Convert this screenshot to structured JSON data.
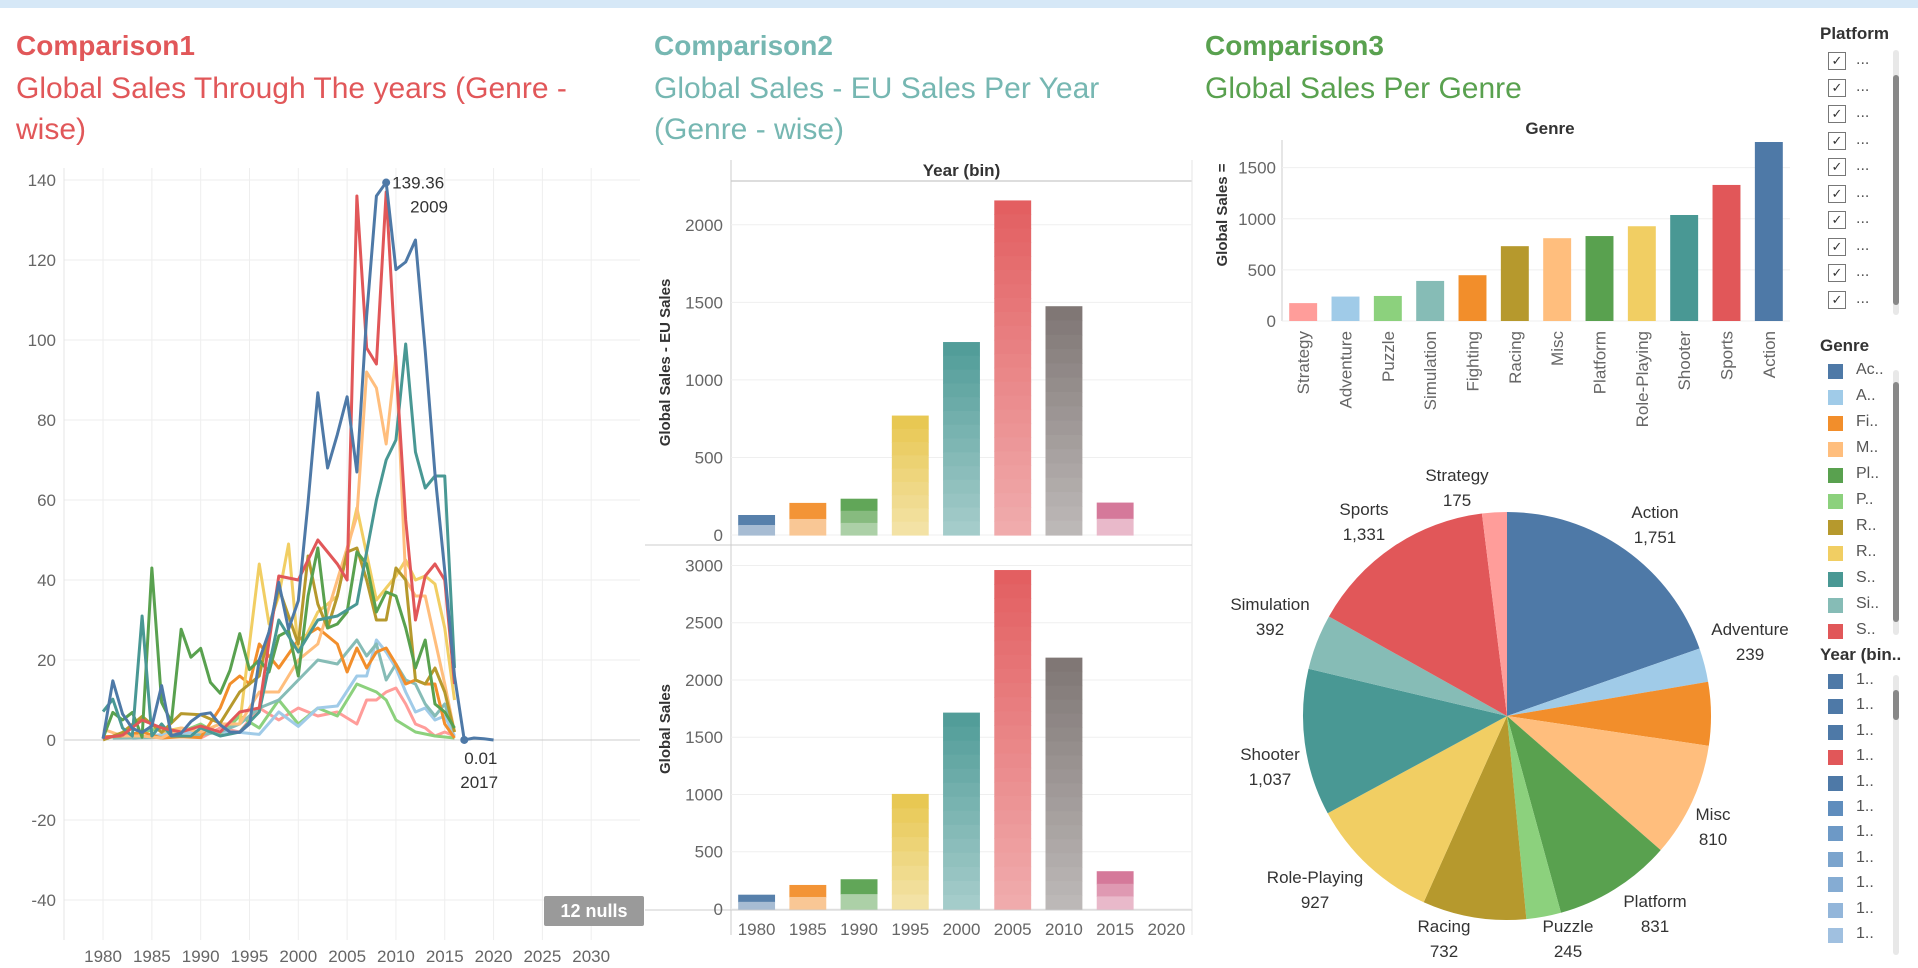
{
  "colors": {
    "Action": "#4e79a7",
    "Adventure": "#a0cbe8",
    "Fighting": "#f28e2b",
    "Misc": "#ffbe7d",
    "Platform": "#59a14f",
    "Puzzle": "#8cd17d",
    "Racing": "#b6992d",
    "Role-Playing": "#f1ce63",
    "Shooter": "#499894",
    "Simulation": "#86bcb6",
    "Sports": "#e15759",
    "Strategy": "#ff9d9a"
  },
  "comparison1": {
    "heading": "Comparison1",
    "subtitle_line1": "Global Sales Through The years (Genre -",
    "subtitle_line2": "wise)",
    "heading_color": "#e15759",
    "nulls_badge": "12 nulls",
    "annotation_max_value": "139.36",
    "annotation_max_year": "2009",
    "annotation_min_value": "0.01",
    "annotation_min_year": "2017"
  },
  "comparison2": {
    "heading": "Comparison2",
    "subtitle_line1": "Global Sales - EU Sales Per Year",
    "subtitle_line2": "(Genre - wise)",
    "heading_color": "#76b7b2",
    "top_header": "Year (bin)",
    "ylabel_top": "Global Sales - EU Sales",
    "ylabel_bottom": "Global Sales"
  },
  "comparison3": {
    "heading": "Comparison3",
    "subtitle_line1": "Global Sales Per Genre",
    "heading_color": "#59a14f",
    "bar_header": "Genre",
    "bar_ylabel": "Global Sales ="
  },
  "sidebar": {
    "platform_title": "Platform",
    "platform_items": [
      "...",
      "...",
      "...",
      "...",
      "...",
      "...",
      "...",
      "...",
      "...",
      "..."
    ],
    "genre_title": "Genre",
    "genre_items": [
      {
        "label": "Ac..",
        "color": "#4e79a7"
      },
      {
        "label": "A..",
        "color": "#a0cbe8"
      },
      {
        "label": "Fi..",
        "color": "#f28e2b"
      },
      {
        "label": "M..",
        "color": "#ffbe7d"
      },
      {
        "label": "Pl..",
        "color": "#59a14f"
      },
      {
        "label": "P..",
        "color": "#8cd17d"
      },
      {
        "label": "R..",
        "color": "#b6992d"
      },
      {
        "label": "R..",
        "color": "#f1ce63"
      },
      {
        "label": "S..",
        "color": "#499894"
      },
      {
        "label": "Si..",
        "color": "#86bcb6"
      },
      {
        "label": "S..",
        "color": "#e15759"
      }
    ],
    "year_title": "Year (bin..",
    "year_items": [
      {
        "label": "1..",
        "color": "#4e79a7"
      },
      {
        "label": "1..",
        "color": "#4e79a7"
      },
      {
        "label": "1..",
        "color": "#4e79a7"
      },
      {
        "label": "1..",
        "color": "#e15759"
      },
      {
        "label": "1..",
        "color": "#4e79a7"
      },
      {
        "label": "1..",
        "color": "#5f8dbd"
      },
      {
        "label": "1..",
        "color": "#6d99c6"
      },
      {
        "label": "1..",
        "color": "#7ba4cd"
      },
      {
        "label": "1..",
        "color": "#85acd3"
      },
      {
        "label": "1..",
        "color": "#93b6da"
      },
      {
        "label": "1..",
        "color": "#a0c0e0"
      }
    ]
  },
  "chart_data": [
    {
      "type": "line",
      "title": "Global Sales Through The years (Genre - wise)",
      "x_ticks": [
        1980,
        1985,
        1990,
        1995,
        2000,
        2005,
        2010,
        2015,
        2020,
        2025,
        2030
      ],
      "y_ticks": [
        -40,
        -20,
        0,
        20,
        40,
        60,
        80,
        100,
        120,
        140
      ],
      "xlim": [
        1976,
        2035
      ],
      "ylim": [
        -50,
        143
      ],
      "series": [
        {
          "name": "Action",
          "x": [
            1980,
            1981,
            1982,
            1983,
            1984,
            1985,
            1986,
            1987,
            1988,
            1989,
            1990,
            1991,
            1992,
            1993,
            1994,
            1995,
            1996,
            1997,
            1998,
            1999,
            2000,
            2001,
            2002,
            2003,
            2004,
            2005,
            2006,
            2007,
            2008,
            2009,
            2010,
            2011,
            2012,
            2013,
            2014,
            2015,
            2016,
            2017,
            2018,
            2019,
            2020
          ],
          "y": [
            0.3,
            14.8,
            6.5,
            2.9,
            1.9,
            3.5,
            13.6,
            1.1,
            1.7,
            4.6,
            6.4,
            6.8,
            3.8,
            2,
            1.9,
            4,
            20,
            27,
            39.4,
            27.7,
            34.8,
            59.4,
            86.8,
            68,
            76.4,
            85.8,
            67,
            106,
            136,
            139.4,
            117.6,
            119.5,
            125,
            97.3,
            66.5,
            42.3,
            16,
            0.01,
            0.5,
            0.3,
            0
          ]
        },
        {
          "name": "Sports",
          "x": [
            1980,
            1982,
            1984,
            1986,
            1988,
            1990,
            1992,
            1994,
            1996,
            1998,
            2000,
            2002,
            2004,
            2005,
            2006,
            2007,
            2008,
            2009,
            2010,
            2011,
            2012,
            2013,
            2014,
            2015,
            2016
          ],
          "y": [
            0.5,
            1.2,
            5,
            3,
            2,
            3.5,
            2,
            7,
            8,
            41,
            40,
            50,
            44,
            40,
            136,
            98,
            94,
            137,
            94,
            55,
            30,
            41,
            44,
            40,
            14
          ]
        },
        {
          "name": "Shooter",
          "x": [
            1980,
            1981,
            1982,
            1983,
            1984,
            1985,
            1986,
            1987,
            1988,
            1989,
            1990,
            1992,
            1994,
            1996,
            1998,
            2000,
            2002,
            2004,
            2006,
            2008,
            2009,
            2010,
            2011,
            2012,
            2013,
            2014,
            2015,
            2016
          ],
          "y": [
            7.1,
            10.2,
            3,
            1,
            31,
            1,
            4,
            1,
            1,
            1,
            3,
            1,
            2,
            7,
            30,
            22,
            30,
            31,
            34,
            60,
            70,
            75,
            99,
            72,
            63,
            66,
            66,
            18
          ]
        },
        {
          "name": "Platform",
          "x": [
            1980,
            1981,
            1982,
            1983,
            1984,
            1985,
            1986,
            1987,
            1988,
            1989,
            1990,
            1991,
            1992,
            1993,
            1994,
            1995,
            1996,
            1997,
            1998,
            1999,
            2000,
            2001,
            2002,
            2003,
            2004,
            2005,
            2006,
            2007,
            2008,
            2009,
            2010,
            2011,
            2012,
            2013,
            2014,
            2015,
            2016
          ],
          "y": [
            0.5,
            6.9,
            5,
            6.9,
            0.7,
            43,
            9.4,
            4.5,
            27.7,
            20.7,
            22.9,
            14.4,
            11.7,
            17.4,
            26.6,
            17.6,
            20,
            17,
            26,
            27.3,
            16,
            36,
            48,
            28,
            29,
            32,
            47,
            44,
            32,
            37,
            36,
            28,
            18,
            25,
            9,
            7,
            3
          ]
        },
        {
          "name": "Racing",
          "x": [
            1980,
            1982,
            1984,
            1986,
            1988,
            1990,
            1992,
            1994,
            1996,
            1998,
            2000,
            2001,
            2002,
            2003,
            2004,
            2005,
            2006,
            2007,
            2008,
            2009,
            2010,
            2011,
            2012,
            2013,
            2014,
            2015,
            2016
          ],
          "y": [
            0,
            1.9,
            5.9,
            1.9,
            6.6,
            6.3,
            4.2,
            12,
            16,
            38,
            24,
            46,
            34,
            28,
            36,
            47,
            48,
            40,
            30,
            30,
            43,
            40,
            15,
            14,
            18,
            12,
            2
          ]
        },
        {
          "name": "Misc",
          "x": [
            1980,
            1982,
            1984,
            1986,
            1988,
            1990,
            1992,
            1994,
            1996,
            1998,
            2000,
            2002,
            2004,
            2006,
            2007,
            2008,
            2009,
            2010,
            2011,
            2012,
            2013,
            2014,
            2015,
            2016
          ],
          "y": [
            2.7,
            1,
            1,
            0.5,
            3,
            2,
            4,
            4,
            12,
            12,
            20,
            24,
            40,
            56,
            92,
            88,
            74,
            96,
            40,
            36,
            36,
            25,
            14,
            2
          ]
        },
        {
          "name": "Role-Playing",
          "x": [
            1986,
            1988,
            1990,
            1992,
            1994,
            1996,
            1997,
            1998,
            1999,
            2000,
            2002,
            2004,
            2006,
            2008,
            2010,
            2011,
            2012,
            2013,
            2014,
            2015,
            2016
          ],
          "y": [
            2,
            3,
            2,
            4,
            4,
            44,
            29,
            36,
            49,
            22,
            32,
            36,
            58,
            35,
            41,
            45,
            40,
            41,
            39,
            28,
            10
          ]
        },
        {
          "name": "Fighting",
          "x": [
            1980,
            1982,
            1984,
            1986,
            1988,
            1990,
            1992,
            1993,
            1994,
            1995,
            1996,
            1998,
            2000,
            2002,
            2004,
            2005,
            2006,
            2007,
            2008,
            2009,
            2010,
            2011,
            2012,
            2013,
            2014,
            2015,
            2016
          ],
          "y": [
            0.8,
            1,
            2,
            0.5,
            0.8,
            0.6,
            8,
            14,
            16,
            14,
            24,
            18,
            25,
            28,
            24,
            17,
            23,
            18,
            22,
            23,
            19,
            14,
            15,
            14,
            14,
            4,
            0.5
          ]
        },
        {
          "name": "Simulation",
          "x": [
            1981,
            1985,
            1989,
            1992,
            1994,
            1996,
            1998,
            2000,
            2002,
            2004,
            2006,
            2007,
            2008,
            2009,
            2010,
            2011,
            2012,
            2013,
            2014,
            2015,
            2016
          ],
          "y": [
            0.5,
            0.6,
            1,
            2,
            4,
            8,
            10,
            15,
            20,
            19,
            25,
            21,
            24,
            15,
            19,
            15,
            14,
            9,
            6,
            9,
            2
          ]
        },
        {
          "name": "Adventure",
          "x": [
            1983,
            1987,
            1991,
            1994,
            1996,
            1998,
            2000,
            2002,
            2004,
            2006,
            2007,
            2008,
            2009,
            2010,
            2011,
            2012,
            2013,
            2014,
            2015,
            2016
          ],
          "y": [
            0.4,
            1.7,
            2.1,
            1.9,
            1.4,
            7,
            3.4,
            8,
            8.5,
            16,
            16,
            25,
            22,
            18,
            12,
            7,
            8,
            5,
            6,
            1
          ]
        },
        {
          "name": "Puzzle",
          "x": [
            1980,
            1982,
            1984,
            1986,
            1988,
            1990,
            1992,
            1994,
            1996,
            1998,
            2000,
            2002,
            2004,
            2006,
            2008,
            2009,
            2010,
            2012,
            2014,
            2016
          ],
          "y": [
            0.5,
            1,
            2,
            3,
            2,
            4,
            1.2,
            6,
            3,
            10,
            4,
            8,
            6,
            14,
            12,
            10,
            5,
            2,
            1,
            0.5
          ]
        },
        {
          "name": "Strategy",
          "x": [
            1990,
            1992,
            1994,
            1996,
            1998,
            2000,
            2002,
            2004,
            2006,
            2007,
            2008,
            2009,
            2010,
            2011,
            2012,
            2013,
            2014,
            2015,
            2016
          ],
          "y": [
            0.5,
            3,
            2,
            8,
            5,
            8,
            6,
            7,
            4,
            10,
            10,
            12,
            13,
            9,
            4,
            3,
            1,
            2,
            1
          ]
        }
      ]
    },
    {
      "type": "bar",
      "title": "Global Sales - EU Sales Per Year (Genre - wise)",
      "ylabel": "Global Sales - EU Sales",
      "categories": [
        "1980",
        "1985",
        "1990",
        "1995",
        "2000",
        "2005",
        "2010",
        "2015",
        "2020"
      ],
      "values": [
        129,
        207,
        234,
        770,
        1244,
        2157,
        1475,
        209,
        0
      ],
      "bar_colors": [
        "#4e79a7",
        "#f28e2b",
        "#59a14f",
        "#e7c54a",
        "#499894",
        "#e15759",
        "#79706e",
        "#d37295",
        ""
      ],
      "y_ticks": [
        0,
        500,
        1000,
        1500,
        2000
      ],
      "ylim": [
        0,
        2250
      ]
    },
    {
      "type": "bar",
      "title": "Global Sales",
      "ylabel": "Global Sales",
      "categories": [
        "1980",
        "1985",
        "1990",
        "1995",
        "2000",
        "2005",
        "2010",
        "2015",
        "2020"
      ],
      "values": [
        125,
        210,
        260,
        1005,
        1715,
        2960,
        2195,
        330,
        0
      ],
      "bar_colors": [
        "#4e79a7",
        "#f28e2b",
        "#59a14f",
        "#e7c54a",
        "#499894",
        "#e15759",
        "#79706e",
        "#d37295",
        ""
      ],
      "y_ticks": [
        0,
        500,
        1000,
        1500,
        2000,
        2500,
        3000
      ],
      "ylim": [
        0,
        3100
      ]
    },
    {
      "type": "bar",
      "title": "Global Sales Per Genre",
      "xlabel": "Genre",
      "ylabel": "Global Sales =",
      "categories": [
        "Strategy",
        "Adventure",
        "Puzzle",
        "Simulation",
        "Fighting",
        "Racing",
        "Misc",
        "Platform",
        "Role-Playing",
        "Shooter",
        "Sports",
        "Action"
      ],
      "values": [
        175,
        239,
        245,
        392,
        448,
        732,
        810,
        831,
        927,
        1037,
        1331,
        1751
      ],
      "y_ticks": [
        0,
        500,
        1000,
        1500
      ],
      "ylim": [
        0,
        1800
      ]
    },
    {
      "type": "pie",
      "title": "Global Sales Per Genre",
      "slices": [
        {
          "label": "Action",
          "value": 1751,
          "text": "1,751"
        },
        {
          "label": "Adventure",
          "value": 239,
          "text": "239"
        },
        {
          "label": "Fighting",
          "value": 448,
          "text": ""
        },
        {
          "label": "Misc",
          "value": 810,
          "text": "810"
        },
        {
          "label": "Platform",
          "value": 831,
          "text": "831"
        },
        {
          "label": "Puzzle",
          "value": 245,
          "text": "245"
        },
        {
          "label": "Racing",
          "value": 732,
          "text": "732"
        },
        {
          "label": "Role-Playing",
          "value": 927,
          "text": "927"
        },
        {
          "label": "Shooter",
          "value": 1037,
          "text": "1,037"
        },
        {
          "label": "Simulation",
          "value": 392,
          "text": "392"
        },
        {
          "label": "Sports",
          "value": 1331,
          "text": "1,331"
        },
        {
          "label": "Strategy",
          "value": 175,
          "text": "175"
        }
      ]
    }
  ]
}
